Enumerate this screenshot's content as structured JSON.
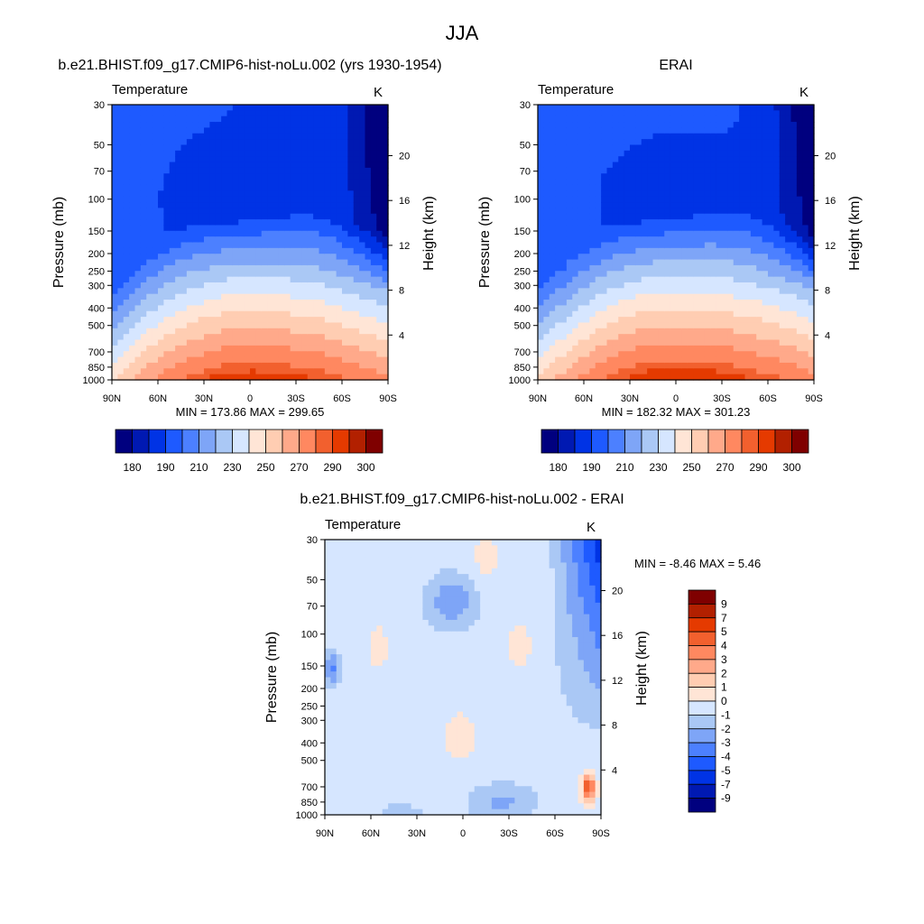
{
  "page": {
    "title": "JJA"
  },
  "colors": {
    "panel_scale": [
      "#00007f",
      "#0019b2",
      "#0033e5",
      "#1e5aff",
      "#4c80ff",
      "#7ea5f7",
      "#aac8f5",
      "#d6e6ff",
      "#ffe5d6",
      "#ffcdb2",
      "#ffa98a",
      "#ff8860",
      "#f2602e",
      "#e53a00",
      "#b22000",
      "#7f0000"
    ],
    "diff_scale": [
      "#00007f",
      "#0019b2",
      "#0033e5",
      "#1e5aff",
      "#4c80ff",
      "#7ea5f7",
      "#aac8f5",
      "#d6e6ff",
      "#ffe5d6",
      "#ffcdb2",
      "#ffa98a",
      "#ff8860",
      "#f2602e",
      "#e53a00",
      "#b22000",
      "#7f0000"
    ]
  },
  "chart_data": [
    {
      "type": "heatmap",
      "title": "b.e21.BHIST.f09_g17.CMIP6-hist-noLu.002 (yrs 1930-1954)",
      "left_label": "Temperature",
      "units": "K",
      "ylabel": "Pressure (mb)",
      "y2label": "Height (km)",
      "x_ticks": [
        "90N",
        "60N",
        "30N",
        "0",
        "30S",
        "60S",
        "90S"
      ],
      "y_ticks": [
        "30",
        "50",
        "70",
        "100",
        "150",
        "200",
        "250",
        "300",
        "400",
        "500",
        "700",
        "850",
        "1000"
      ],
      "y2_ticks": [
        "20",
        "16",
        "12",
        "8",
        "4"
      ],
      "stats": "MIN = 173.86  MAX = 299.65",
      "min": 173.86,
      "max": 299.65,
      "colorbar_labels": [
        "180",
        "190",
        "210",
        "230",
        "250",
        "270",
        "290",
        "300"
      ]
    },
    {
      "type": "heatmap",
      "title": "ERAI",
      "left_label": "Temperature",
      "units": "K",
      "ylabel": "Pressure (mb)",
      "y2label": "Height (km)",
      "x_ticks": [
        "90N",
        "60N",
        "30N",
        "0",
        "30S",
        "60S",
        "90S"
      ],
      "y_ticks": [
        "30",
        "50",
        "70",
        "100",
        "150",
        "200",
        "250",
        "300",
        "400",
        "500",
        "700",
        "850",
        "1000"
      ],
      "y2_ticks": [
        "20",
        "16",
        "12",
        "8",
        "4"
      ],
      "stats": "MIN = 182.32  MAX = 301.23",
      "min": 182.32,
      "max": 301.23,
      "colorbar_labels": [
        "180",
        "190",
        "210",
        "230",
        "250",
        "270",
        "290",
        "300"
      ]
    },
    {
      "type": "heatmap",
      "title": "b.e21.BHIST.f09_g17.CMIP6-hist-noLu.002 - ERAI",
      "left_label": "Temperature",
      "units": "K",
      "ylabel": "Pressure (mb)",
      "y2label": "Height (km)",
      "x_ticks": [
        "90N",
        "60N",
        "30N",
        "0",
        "30S",
        "60S",
        "90S"
      ],
      "y_ticks": [
        "30",
        "50",
        "70",
        "100",
        "150",
        "200",
        "250",
        "300",
        "400",
        "500",
        "700",
        "850",
        "1000"
      ],
      "y2_ticks": [
        "20",
        "16",
        "12",
        "8",
        "4"
      ],
      "stats": "MIN =  -8.46  MAX =   5.46",
      "min": -8.46,
      "max": 5.46,
      "colorbar_labels": [
        "9",
        "7",
        "5",
        "4",
        "3",
        "2",
        "1",
        "0",
        "-1",
        "-2",
        "-3",
        "-4",
        "-5",
        "-7",
        "-9"
      ]
    }
  ]
}
